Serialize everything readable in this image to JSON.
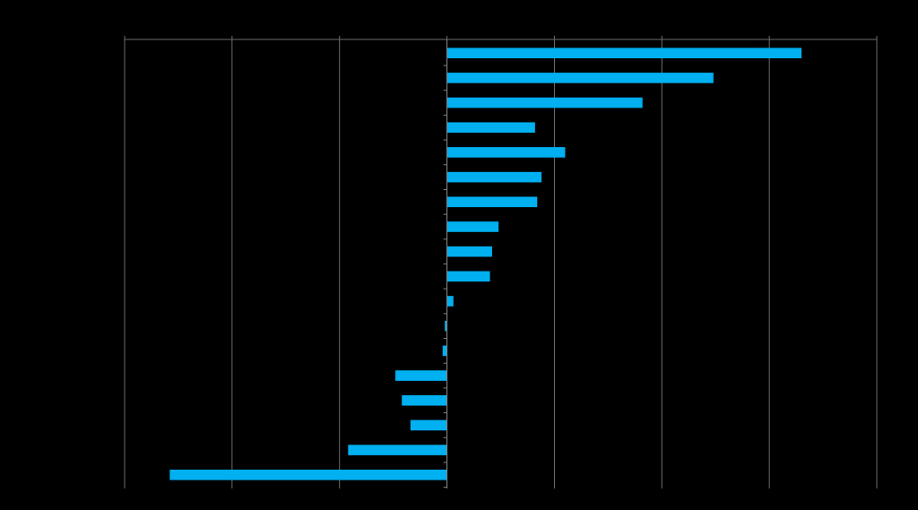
{
  "chart_data": {
    "type": "bar",
    "orientation": "horizontal",
    "title": "",
    "xlabel": "",
    "ylabel": "",
    "values": [
      16.5,
      12.4,
      9.1,
      4.1,
      5.5,
      4.4,
      4.2,
      2.4,
      2.1,
      2.0,
      0.3,
      -0.1,
      -0.2,
      -2.4,
      -2.1,
      -1.7,
      -4.6,
      -12.9
    ],
    "xlim": [
      -15,
      20
    ],
    "grid": "vertical",
    "legend": "none",
    "colors": {
      "background": "#000000",
      "bar": "#00b0f0",
      "grid": "#6d6d6d",
      "axis": "#808080"
    }
  }
}
